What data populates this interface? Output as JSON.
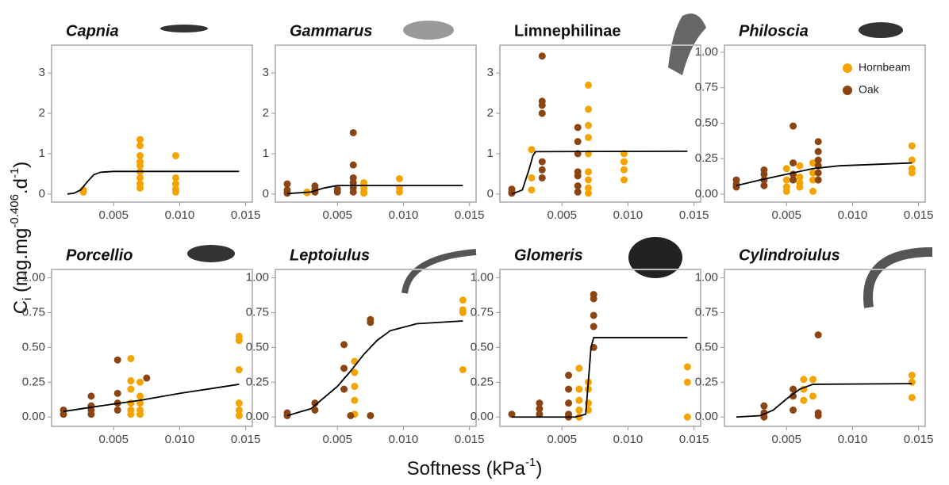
{
  "y_label_parts": [
    "C",
    "i",
    " (mg.mg",
    "-0.406",
    ".d",
    "-1",
    ")"
  ],
  "x_label_parts": [
    "Softness (kPa",
    "-1",
    ")"
  ],
  "chart_data": [
    {
      "type": "scatter",
      "title": "Capnia",
      "italic": true,
      "xlim": [
        0.0003,
        0.0155
      ],
      "xticks": [
        0.005,
        {
          "value": 0.01,
          "label": "0.010"
        },
        0.015
      ],
      "ylim": [
        -0.2,
        3.69
      ],
      "yticks": [
        0,
        1,
        2,
        3
      ],
      "series": [
        {
          "name": "Hornbeam",
          "color": "#f5a300",
          "x": [
            0.0027,
            0.0027,
            0.0027,
            0.007,
            0.007,
            0.007,
            0.007,
            0.007,
            0.007,
            0.007,
            0.007,
            0.007,
            0.0097,
            0.0097,
            0.0097,
            0.0097,
            0.0097
          ],
          "values": [
            0.05,
            0.1,
            0.08,
            1.35,
            1.2,
            0.95,
            0.8,
            0.7,
            0.55,
            0.4,
            0.25,
            0.15,
            0.95,
            0.4,
            0.25,
            0.12,
            0.05
          ]
        },
        {
          "name": "Oak",
          "color": "#8b4513",
          "x": [],
          "values": []
        },
        {
          "type": "line",
          "color": "#000000",
          "x": [
            0.0015,
            0.002,
            0.0025,
            0.003,
            0.0035,
            0.004,
            0.005,
            0.0145
          ],
          "values": [
            0,
            0.02,
            0.1,
            0.3,
            0.48,
            0.54,
            0.56,
            0.56
          ]
        }
      ]
    },
    {
      "type": "scatter",
      "title": "Gammarus",
      "italic": true,
      "xlim": [
        0.0003,
        0.0155
      ],
      "xticks": [
        0.005,
        {
          "value": 0.01,
          "label": "0.010"
        },
        0.015
      ],
      "ylim": [
        -0.2,
        3.69
      ],
      "yticks": [
        0,
        1,
        2,
        3
      ],
      "series": [
        {
          "name": "Hornbeam",
          "color": "#f5a300",
          "x": [
            0.0027,
            0.0027,
            0.0033,
            0.0033,
            0.007,
            0.007,
            0.007,
            0.007,
            0.007,
            0.0097,
            0.0097,
            0.0097
          ],
          "values": [
            0.05,
            0.03,
            0.1,
            0.05,
            0.28,
            0.2,
            0.15,
            0.05,
            0.02,
            0.38,
            0.15,
            0.05
          ]
        },
        {
          "name": "Oak",
          "color": "#8b4513",
          "x": [
            0.0012,
            0.0012,
            0.0012,
            0.0033,
            0.0033,
            0.0033,
            0.005,
            0.005,
            0.0062,
            0.0062,
            0.0062,
            0.0062,
            0.0062,
            0.0062
          ],
          "values": [
            0.25,
            0.1,
            0.02,
            0.2,
            0.12,
            0.05,
            0.12,
            0.05,
            1.52,
            0.72,
            0.4,
            0.28,
            0.15,
            0.05
          ]
        },
        {
          "type": "line",
          "color": "#000000",
          "x": [
            0.0012,
            0.003,
            0.004,
            0.005,
            0.0145
          ],
          "values": [
            0.01,
            0.05,
            0.15,
            0.21,
            0.21
          ]
        }
      ]
    },
    {
      "type": "scatter",
      "title": "Limnephilinae",
      "italic": false,
      "xlim": [
        0.0003,
        0.0155
      ],
      "xticks": [
        0.005,
        {
          "value": 0.01,
          "label": "0.010"
        },
        0.015
      ],
      "ylim": [
        -0.2,
        3.69
      ],
      "yticks": [
        0,
        1,
        2,
        3
      ],
      "series": [
        {
          "name": "Hornbeam",
          "color": "#f5a300",
          "x": [
            0.0027,
            0.0027,
            0.0027,
            0.007,
            0.007,
            0.007,
            0.007,
            0.007,
            0.007,
            0.007,
            0.007,
            0.007,
            0.0097,
            0.0097,
            0.0097,
            0.0097
          ],
          "values": [
            1.1,
            0.4,
            0.1,
            2.7,
            2.1,
            1.7,
            1.4,
            1.0,
            0.55,
            0.35,
            0.15,
            0.02,
            1.0,
            0.8,
            0.6,
            0.35
          ]
        },
        {
          "name": "Oak",
          "color": "#8b4513",
          "x": [
            0.0012,
            0.0012,
            0.0012,
            0.0035,
            0.0035,
            0.0035,
            0.0035,
            0.0035,
            0.0035,
            0.0035,
            0.0062,
            0.0062,
            0.0062,
            0.0062,
            0.0062,
            0.0062,
            0.0062
          ],
          "values": [
            0.12,
            0.05,
            0.02,
            3.42,
            2.3,
            2.2,
            2.0,
            0.8,
            0.6,
            0.4,
            1.65,
            1.3,
            1.0,
            0.55,
            0.45,
            0.2,
            0.05
          ]
        },
        {
          "type": "line",
          "color": "#000000",
          "x": [
            0.0012,
            0.002,
            0.0025,
            0.0028,
            0.003,
            0.0145
          ],
          "values": [
            0,
            0.1,
            0.6,
            0.95,
            1.05,
            1.06
          ]
        }
      ]
    },
    {
      "type": "scatter",
      "title": "Philoscia",
      "italic": true,
      "legend": "top-right",
      "xlim": [
        0.0003,
        0.0155
      ],
      "xticks": [
        0.005,
        {
          "value": 0.01,
          "label": "0.010"
        },
        0.015
      ],
      "ylim": [
        -0.056,
        1.05
      ],
      "yticks": [
        {
          "value": 0,
          "label": "0.00"
        },
        0.25,
        {
          "value": 0.5,
          "label": "0.50"
        },
        0.75,
        {
          "value": 1,
          "label": "1.00"
        }
      ],
      "series": [
        {
          "name": "Hornbeam",
          "color": "#f5a300",
          "x": [
            0.005,
            0.005,
            0.005,
            0.005,
            0.006,
            0.006,
            0.006,
            0.006,
            0.007,
            0.007,
            0.007,
            0.007,
            0.0145,
            0.0145,
            0.0145,
            0.0145
          ],
          "values": [
            0.18,
            0.1,
            0.05,
            0.02,
            0.2,
            0.12,
            0.08,
            0.05,
            0.22,
            0.15,
            0.1,
            0.02,
            0.34,
            0.24,
            0.18,
            0.15
          ]
        },
        {
          "name": "Oak",
          "color": "#8b4513",
          "x": [
            0.0012,
            0.0012,
            0.0012,
            0.0033,
            0.0033,
            0.0033,
            0.0033,
            0.0055,
            0.0055,
            0.0055,
            0.0055,
            0.0074,
            0.0074,
            0.0074,
            0.0074,
            0.0074,
            0.0074
          ],
          "values": [
            0.1,
            0.07,
            0.05,
            0.17,
            0.14,
            0.1,
            0.06,
            0.48,
            0.22,
            0.14,
            0.1,
            0.37,
            0.3,
            0.24,
            0.2,
            0.15,
            0.1
          ]
        },
        {
          "type": "line",
          "color": "#000000",
          "x": [
            0.0012,
            0.003,
            0.005,
            0.007,
            0.009,
            0.0145
          ],
          "values": [
            0.06,
            0.1,
            0.14,
            0.18,
            0.2,
            0.22
          ]
        }
      ]
    },
    {
      "type": "scatter",
      "title": "Porcellio",
      "italic": true,
      "xlim": [
        0.0003,
        0.0155
      ],
      "xticks": [
        0.005,
        {
          "value": 0.01,
          "label": "0.010"
        },
        0.015
      ],
      "ylim": [
        -0.067,
        1.06
      ],
      "yticks": [
        {
          "value": 0,
          "label": "0.00"
        },
        0.25,
        {
          "value": 0.5,
          "label": "0.50"
        },
        0.75,
        {
          "value": 1,
          "label": "1.00"
        }
      ],
      "series": [
        {
          "name": "Hornbeam",
          "color": "#f5a300",
          "x": [
            0.0063,
            0.0063,
            0.0063,
            0.0063,
            0.0063,
            0.0063,
            0.007,
            0.007,
            0.007,
            0.007,
            0.007,
            0.0145,
            0.0145,
            0.0145,
            0.0145,
            0.0145,
            0.0145
          ],
          "values": [
            0.42,
            0.26,
            0.2,
            0.1,
            0.05,
            0.02,
            0.25,
            0.15,
            0.1,
            0.05,
            0.02,
            0.58,
            0.55,
            0.34,
            0.1,
            0.05,
            0.01
          ]
        },
        {
          "name": "Oak",
          "color": "#8b4513",
          "x": [
            0.0012,
            0.0012,
            0.0033,
            0.0033,
            0.0033,
            0.0033,
            0.0053,
            0.0053,
            0.0053,
            0.0053,
            0.0075
          ],
          "values": [
            0.05,
            0.02,
            0.15,
            0.08,
            0.05,
            0.02,
            0.41,
            0.17,
            0.1,
            0.05,
            0.28
          ]
        },
        {
          "type": "line",
          "color": "#000000",
          "x": [
            0.0012,
            0.004,
            0.007,
            0.01,
            0.0145
          ],
          "values": [
            0.04,
            0.08,
            0.12,
            0.17,
            0.235
          ]
        }
      ]
    },
    {
      "type": "scatter",
      "title": "Leptoiulus",
      "italic": true,
      "xlim": [
        0.0003,
        0.0155
      ],
      "xticks": [
        0.005,
        {
          "value": 0.01,
          "label": "0.010"
        },
        0.015
      ],
      "ylim": [
        -0.067,
        1.06
      ],
      "yticks": [
        {
          "value": 0,
          "label": "0.00"
        },
        0.25,
        {
          "value": 0.5,
          "label": "0.50"
        },
        0.75,
        {
          "value": 1,
          "label": "1.00"
        }
      ],
      "series": [
        {
          "name": "Hornbeam",
          "color": "#f5a300",
          "x": [
            0.0063,
            0.0063,
            0.0063,
            0.0063,
            0.0063,
            0.0145,
            0.0145,
            0.0145,
            0.0145
          ],
          "values": [
            0.4,
            0.32,
            0.22,
            0.12,
            0.02,
            0.84,
            0.77,
            0.75,
            0.34
          ]
        },
        {
          "name": "Oak",
          "color": "#8b4513",
          "x": [
            0.0012,
            0.0012,
            0.0033,
            0.0033,
            0.0055,
            0.0055,
            0.0055,
            0.006,
            0.0075,
            0.0075,
            0.0075
          ],
          "values": [
            0.03,
            0.01,
            0.1,
            0.05,
            0.52,
            0.35,
            0.2,
            0.01,
            0.7,
            0.68,
            0.01
          ]
        },
        {
          "type": "line",
          "color": "#000000",
          "x": [
            0.0012,
            0.003,
            0.005,
            0.006,
            0.007,
            0.008,
            0.009,
            0.011,
            0.0145
          ],
          "values": [
            0.01,
            0.06,
            0.22,
            0.33,
            0.45,
            0.55,
            0.62,
            0.67,
            0.69
          ]
        }
      ]
    },
    {
      "type": "scatter",
      "title": "Glomeris",
      "italic": true,
      "xlim": [
        0.0003,
        0.0155
      ],
      "xticks": [
        0.005,
        {
          "value": 0.01,
          "label": "0.010"
        },
        0.015
      ],
      "ylim": [
        -0.067,
        1.06
      ],
      "yticks": [
        {
          "value": 0,
          "label": "0.00"
        },
        0.25,
        {
          "value": 0.5,
          "label": "0.50"
        },
        0.75,
        {
          "value": 1,
          "label": "1.00"
        }
      ],
      "series": [
        {
          "name": "Hornbeam",
          "color": "#f5a300",
          "x": [
            0.0063,
            0.0063,
            0.0063,
            0.0063,
            0.0063,
            0.007,
            0.007,
            0.007,
            0.007,
            0.0145,
            0.0145,
            0.0145
          ],
          "values": [
            0.35,
            0.2,
            0.12,
            0.05,
            0,
            0.25,
            0.2,
            0.1,
            0.05,
            0.36,
            0.25,
            0
          ]
        },
        {
          "name": "Oak",
          "color": "#8b4513",
          "x": [
            0.0012,
            0.0033,
            0.0033,
            0.0033,
            0.0055,
            0.0055,
            0.0055,
            0.0055,
            0.0055,
            0.0074,
            0.0074,
            0.0074,
            0.0074,
            0.0074
          ],
          "values": [
            0.02,
            0.1,
            0.06,
            0.02,
            0.3,
            0.2,
            0.1,
            0.02,
            0,
            0.88,
            0.85,
            0.73,
            0.65,
            0.5
          ]
        },
        {
          "type": "line",
          "color": "#000000",
          "x": [
            0.0012,
            0.006,
            0.0068,
            0.0072,
            0.0074,
            0.0145
          ],
          "values": [
            0,
            0,
            0.02,
            0.5,
            0.57,
            0.57
          ]
        }
      ]
    },
    {
      "type": "scatter",
      "title": "Cylindroiulus",
      "italic": true,
      "xlim": [
        0.0003,
        0.0155
      ],
      "xticks": [
        0.005,
        {
          "value": 0.01,
          "label": "0.010"
        },
        0.015
      ],
      "ylim": [
        -0.067,
        1.06
      ],
      "yticks": [
        {
          "value": 0,
          "label": "0.00"
        },
        0.25,
        {
          "value": 0.5,
          "label": "0.50"
        },
        0.75,
        {
          "value": 1,
          "label": "1.00"
        }
      ],
      "series": [
        {
          "name": "Hornbeam",
          "color": "#f5a300",
          "x": [
            0.0063,
            0.0063,
            0.0063,
            0.007,
            0.007,
            0.0145,
            0.0145,
            0.0145
          ],
          "values": [
            0.27,
            0.2,
            0.12,
            0.27,
            0.15,
            0.3,
            0.25,
            0.14
          ]
        },
        {
          "name": "Oak",
          "color": "#8b4513",
          "x": [
            0.0033,
            0.0033,
            0.0033,
            0.0055,
            0.0055,
            0.0055,
            0.0074,
            0.0074,
            0.0074
          ],
          "values": [
            0.08,
            0.03,
            0,
            0.2,
            0.15,
            0.05,
            0.59,
            0.03,
            0.01
          ]
        },
        {
          "type": "line",
          "color": "#000000",
          "x": [
            0.0012,
            0.003,
            0.004,
            0.005,
            0.006,
            0.007,
            0.0145
          ],
          "values": [
            0,
            0.01,
            0.05,
            0.13,
            0.2,
            0.235,
            0.24
          ]
        }
      ]
    }
  ]
}
